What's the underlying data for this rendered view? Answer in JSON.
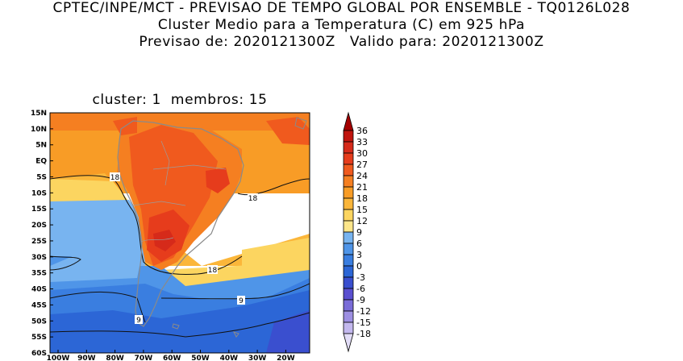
{
  "header": {
    "line1": "CPTEC/INPE/MCT - PREVISAO DE TEMPO GLOBAL POR ENSEMBLE - TQ0126L028",
    "line2": "Cluster Medio para a Temperatura (C) em 925 hPa",
    "line3": "Previsao de: 2020121300Z   Valido para: 2020121300Z"
  },
  "map": {
    "subtitle": "cluster: 1  membros: 15",
    "lat_labels": [
      "15N",
      "10N",
      "5N",
      "EQ",
      "5S",
      "10S",
      "15S",
      "20S",
      "25S",
      "30S",
      "35S",
      "40S",
      "45S",
      "50S",
      "55S",
      "60S"
    ],
    "lon_labels": [
      "100W",
      "90W",
      "80W",
      "70W",
      "60W",
      "50W",
      "40W",
      "30W",
      "20W"
    ],
    "contour_labels": [
      "18",
      "18",
      "18",
      "9",
      "9"
    ]
  },
  "colorbar": {
    "levels": [
      "36",
      "33",
      "30",
      "27",
      "24",
      "21",
      "18",
      "15",
      "12",
      "9",
      "6",
      "3",
      "0",
      "-3",
      "-6",
      "-9",
      "-12",
      "-15",
      "-18"
    ],
    "colors": [
      "#a50000",
      "#c0140e",
      "#d62a1a",
      "#e63c1c",
      "#f05a1e",
      "#f57f21",
      "#f89c26",
      "#fbb63a",
      "#fcd560",
      "#fde68a",
      "#78b4f0",
      "#4f95e8",
      "#3a7ee0",
      "#2c66d6",
      "#3a4fcf",
      "#5a4fd0",
      "#7a6cd8",
      "#9d8fe2",
      "#c3b8ee",
      "#e2ddf7"
    ]
  }
}
